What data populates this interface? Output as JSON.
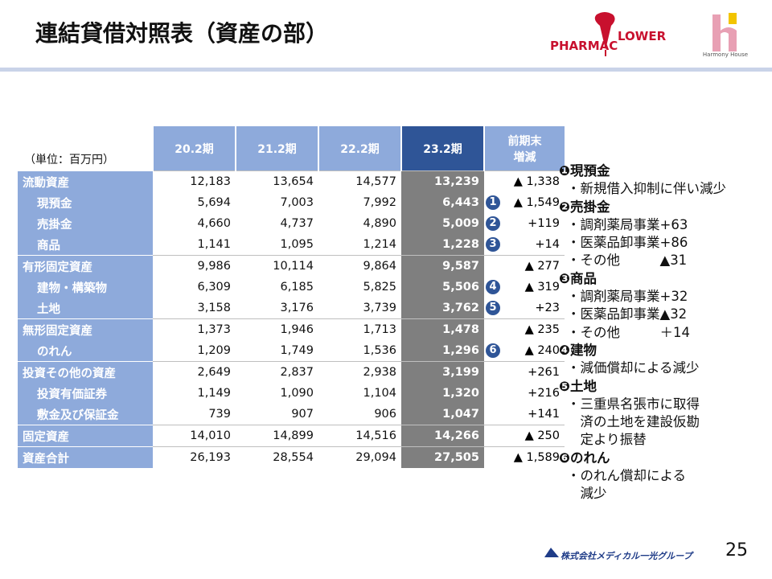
{
  "header": {
    "title": "連結貸借対照表（資産の部）",
    "logo_left": [
      "PHARMAC",
      "LOWER"
    ],
    "logo_right": "Harmony House"
  },
  "table": {
    "unit": "（単位：百万円）",
    "columns": [
      "20.2期",
      "21.2期",
      "22.2期",
      "23.2期",
      [
        "前期末",
        "増減"
      ]
    ],
    "groups": [
      {
        "label": "流動資産",
        "values": [
          "12,183",
          "13,654",
          "14,577",
          "13,239"
        ],
        "change": "▲ 1,338",
        "children": [
          {
            "label": "現預金",
            "values": [
              "5,694",
              "7,003",
              "7,992",
              "6,443"
            ],
            "change": "▲ 1,549",
            "marker": "1"
          },
          {
            "label": "売掛金",
            "values": [
              "4,660",
              "4,737",
              "4,890",
              "5,009"
            ],
            "change": "+119",
            "marker": "2"
          },
          {
            "label": "商品",
            "values": [
              "1,141",
              "1,095",
              "1,214",
              "1,228"
            ],
            "change": "+14",
            "marker": "3"
          }
        ]
      },
      {
        "label": "有形固定資産",
        "values": [
          "9,986",
          "10,114",
          "9,864",
          "9,587"
        ],
        "change": "▲ 277",
        "children": [
          {
            "label": "建物・構築物",
            "values": [
              "6,309",
              "6,185",
              "5,825",
              "5,506"
            ],
            "change": "▲ 319",
            "marker": "4"
          },
          {
            "label": "土地",
            "values": [
              "3,158",
              "3,176",
              "3,739",
              "3,762"
            ],
            "change": "+23",
            "marker": "5"
          }
        ]
      },
      {
        "label": "無形固定資産",
        "values": [
          "1,373",
          "1,946",
          "1,713",
          "1,478"
        ],
        "change": "▲ 235",
        "children": [
          {
            "label": "のれん",
            "values": [
              "1,209",
              "1,749",
              "1,536",
              "1,296"
            ],
            "change": "▲ 240",
            "marker": "6"
          }
        ]
      },
      {
        "label": "投資その他の資産",
        "values": [
          "2,649",
          "2,837",
          "2,938",
          "3,199"
        ],
        "change": "+261",
        "children": [
          {
            "label": "投資有価証券",
            "values": [
              "1,149",
              "1,090",
              "1,104",
              "1,320"
            ],
            "change": "+216"
          },
          {
            "label": "敷金及び保証金",
            "values": [
              "739",
              "907",
              "906",
              "1,047"
            ],
            "change": "+141"
          }
        ]
      },
      {
        "label": "固定資産",
        "values": [
          "14,010",
          "14,899",
          "14,516",
          "14,266"
        ],
        "change": "▲ 250",
        "children": []
      },
      {
        "label": "資産合計",
        "values": [
          "26,193",
          "28,554",
          "29,094",
          "27,505"
        ],
        "change": "▲ 1,589",
        "children": []
      }
    ]
  },
  "notes": [
    {
      "heading": "❶現預金",
      "items": [
        [
          "・新規借入抑制に伴い減少"
        ]
      ]
    },
    {
      "heading": "❷売掛金",
      "items": [
        [
          "・調剤薬局事業+63"
        ],
        [
          "・医薬品卸事業+86"
        ],
        [
          "・その他　　　▲31"
        ]
      ]
    },
    {
      "heading": "❸商品",
      "items": [
        [
          "・調剤薬局事業+32"
        ],
        [
          "・医薬品卸事業▲32"
        ],
        [
          "・その他　　　＋14"
        ]
      ]
    },
    {
      "heading": "❹建物",
      "items": [
        [
          "・減価償却による減少"
        ]
      ]
    },
    {
      "heading": "❺土地",
      "items": [
        [
          "・三重県名張市に取得",
          "　済の土地を建設仮勘",
          "　定より振替"
        ]
      ]
    },
    {
      "heading": "❻のれん",
      "items": [
        [
          "・のれん償却による",
          "　減少"
        ]
      ]
    }
  ],
  "footer": {
    "company": "株式会社メディカル一光グループ",
    "page": "25"
  }
}
